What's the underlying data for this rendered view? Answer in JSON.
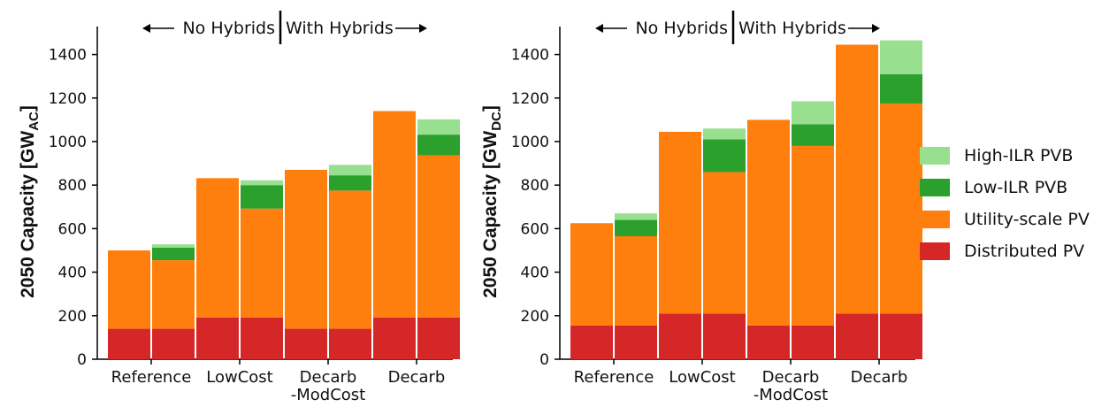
{
  "colors": {
    "high_ilr_pvb": "#98e090",
    "low_ilr_pvb": "#2ca02c",
    "utility_pv": "#ff7f0e",
    "distributed_pv": "#d62728"
  },
  "legend": [
    {
      "key": "high_ilr_pvb",
      "label": "High-ILR PVB"
    },
    {
      "key": "low_ilr_pvb",
      "label": "Low-ILR PVB"
    },
    {
      "key": "utility_pv",
      "label": "Utility-scale PV"
    },
    {
      "key": "distributed_pv",
      "label": "Distributed PV"
    }
  ],
  "chart_data": [
    {
      "type": "bar",
      "stacked": true,
      "ylabel_main": "2050 Capacity [GW",
      "ylabel_sub": "AC",
      "ylabel_end": "]",
      "ylim": [
        0,
        1500
      ],
      "yticks": [
        0,
        200,
        400,
        600,
        800,
        1000,
        1200,
        1400
      ],
      "header_left": "No Hybrids",
      "header_right": "With Hybrids",
      "categories": [
        [
          "Reference"
        ],
        [
          "LowCost"
        ],
        [
          "Decarb",
          "-ModCost"
        ],
        [
          "Decarb"
        ]
      ],
      "no_hybrids": {
        "distributed_pv": [
          140,
          192,
          140,
          192
        ],
        "utility_pv": [
          360,
          640,
          730,
          948
        ]
      },
      "with_hybrids": {
        "distributed_pv": [
          140,
          192,
          140,
          192
        ],
        "utility_pv": [
          315,
          500,
          635,
          745
        ],
        "low_ilr_pvb": [
          58,
          108,
          70,
          95
        ],
        "high_ilr_pvb": [
          15,
          22,
          48,
          70
        ]
      }
    },
    {
      "type": "bar",
      "stacked": true,
      "ylabel_main": "2050 Capacity [GW",
      "ylabel_sub": "DC",
      "ylabel_end": "]",
      "ylim": [
        0,
        1500
      ],
      "yticks": [
        0,
        200,
        400,
        600,
        800,
        1000,
        1200,
        1400
      ],
      "header_left": "No Hybrids",
      "header_right": "With Hybrids",
      "categories": [
        [
          "Reference"
        ],
        [
          "LowCost"
        ],
        [
          "Decarb",
          "-ModCost"
        ],
        [
          "Decarb"
        ]
      ],
      "no_hybrids": {
        "distributed_pv": [
          155,
          210,
          155,
          210
        ],
        "utility_pv": [
          470,
          835,
          945,
          1235
        ]
      },
      "with_hybrids": {
        "distributed_pv": [
          155,
          210,
          155,
          210
        ],
        "utility_pv": [
          410,
          650,
          825,
          965
        ],
        "low_ilr_pvb": [
          75,
          150,
          100,
          135
        ],
        "high_ilr_pvb": [
          30,
          50,
          105,
          155
        ]
      }
    }
  ]
}
